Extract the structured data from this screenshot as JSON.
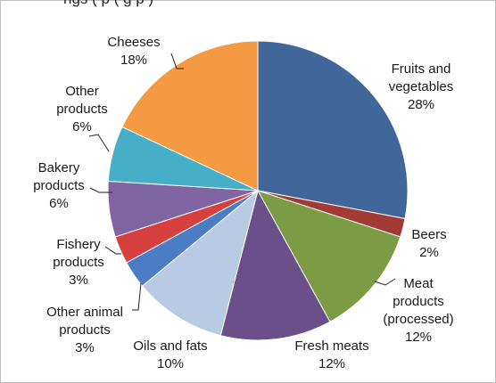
{
  "page": {
    "top_cut_text": "ngs ( p ( g p )"
  },
  "chart_data": {
    "type": "pie",
    "title": "",
    "slices": [
      {
        "name": "Fruits and vegetables",
        "value": 28,
        "label_lines": [
          "Fruits and",
          "vegetables",
          "28%"
        ],
        "color": "#41669A"
      },
      {
        "name": "Beers",
        "value": 2,
        "label_lines": [
          "Beers",
          "2%"
        ],
        "color": "#A23B36"
      },
      {
        "name": "Meat products (processed)",
        "value": 12,
        "label_lines": [
          "Meat",
          "products",
          "(processed)",
          "12%"
        ],
        "color": "#7C9B45"
      },
      {
        "name": "Fresh meats",
        "value": 12,
        "label_lines": [
          "Fresh meats",
          "12%"
        ],
        "color": "#6A4F89"
      },
      {
        "name": "Oils and fats",
        "value": 10,
        "label_lines": [
          "Oils and fats",
          "10%"
        ],
        "color": "#B9CBE4"
      },
      {
        "name": "Other animal products",
        "value": 3,
        "label_lines": [
          "Other animal",
          "products",
          "3%"
        ],
        "color": "#4C7CC4"
      },
      {
        "name": "Fishery products",
        "value": 3,
        "label_lines": [
          "Fishery",
          "products",
          "3%"
        ],
        "color": "#D6413F"
      },
      {
        "name": "Bakery products",
        "value": 6,
        "label_lines": [
          "Bakery",
          "products",
          "6%"
        ],
        "color": "#8065A3"
      },
      {
        "name": "Other products",
        "value": 6,
        "label_lines": [
          "Other",
          "products",
          "6%"
        ],
        "color": "#45AFC8"
      },
      {
        "name": "Cheeses",
        "value": 18,
        "label_lines": [
          "Cheeses",
          "18%"
        ],
        "color": "#F39A43"
      }
    ]
  }
}
